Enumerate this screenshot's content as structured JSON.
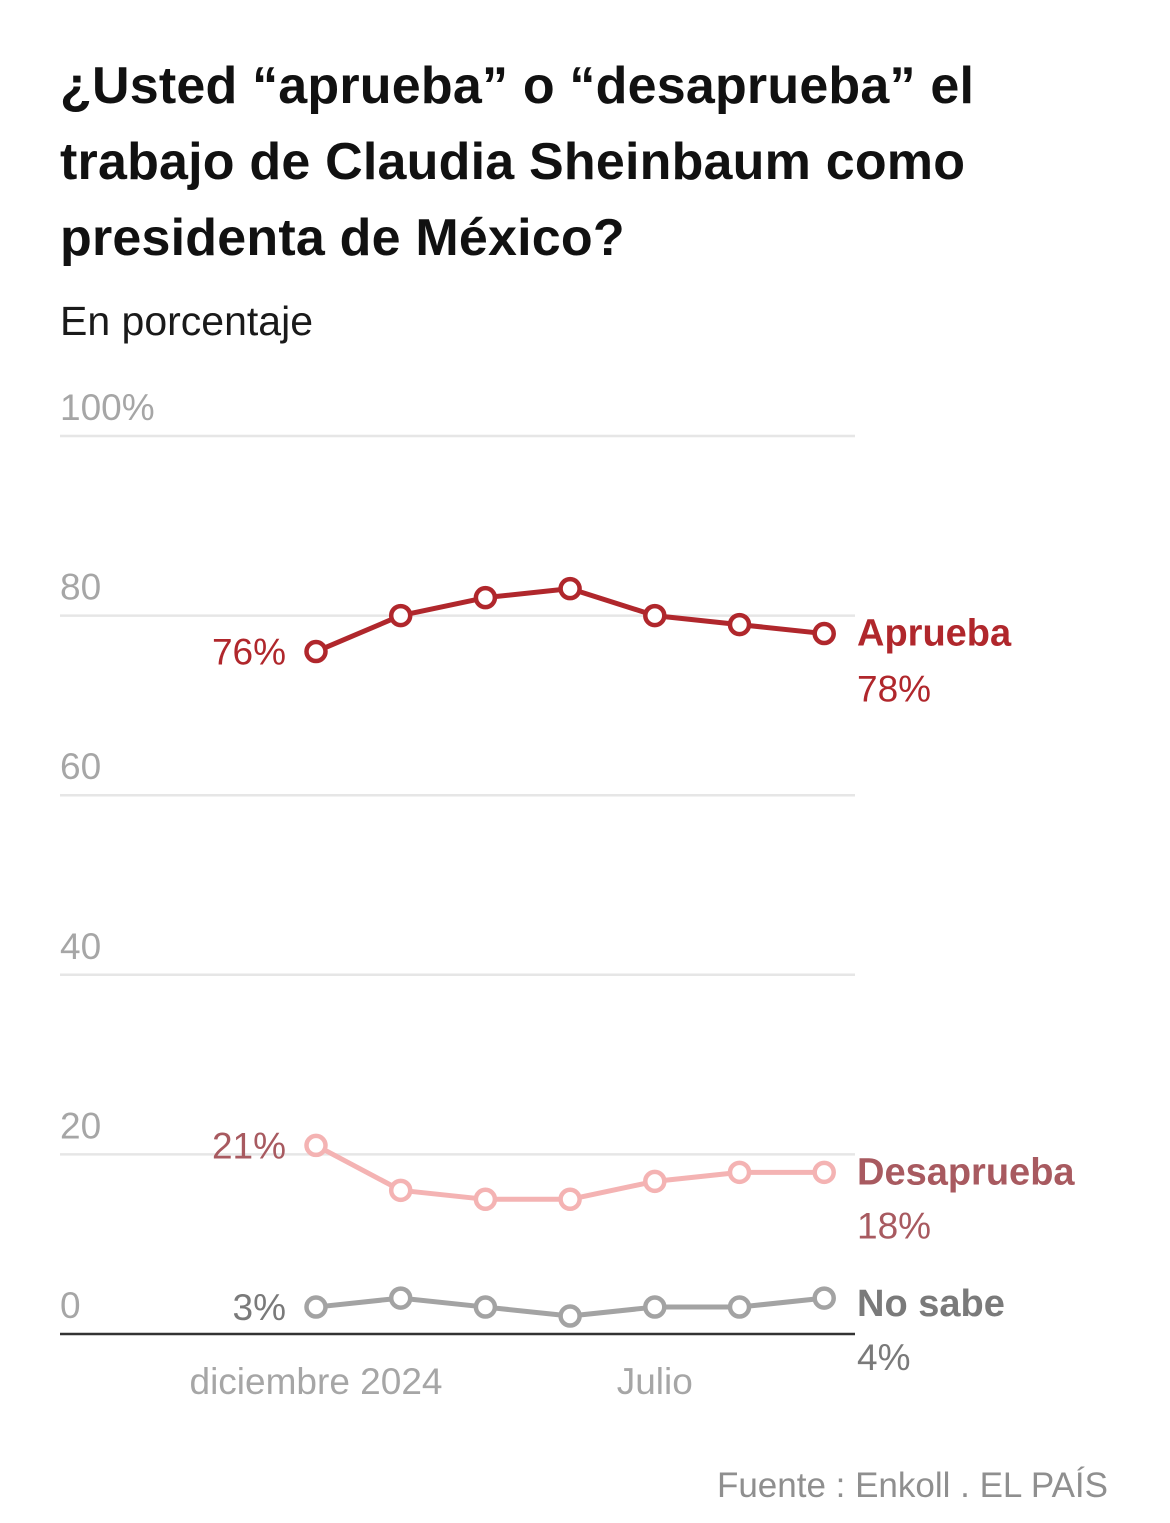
{
  "header": {
    "title": "¿Usted “aprueba” o “desaprueba” el trabajo de Claudia Sheinbaum como presidenta de México?",
    "subtitle": "En porcentaje"
  },
  "footer": {
    "source": "Fuente : Enkoll . EL PAÍS"
  },
  "colors": {
    "aprueba": "#b0272c",
    "desaprueba_line": "#f4b3b3",
    "desaprueba_label": "#a85a60",
    "no_sabe": "#a3a3a3",
    "no_sabe_label": "#7a7a7a",
    "grid": "#e6e6e6",
    "tick": "#a6a6a6",
    "axis": "#333333"
  },
  "chart_data": {
    "type": "line",
    "title": "¿Usted “aprueba” o “desaprueba” el trabajo de Claudia Sheinbaum como presidenta de México?",
    "subtitle": "En porcentaje",
    "xlabel": "",
    "ylabel": "",
    "ylim": [
      0,
      100
    ],
    "y_ticks": [
      0,
      20,
      40,
      60,
      80,
      100
    ],
    "y_tick_labels": [
      "0",
      "20",
      "40",
      "60",
      "80",
      "100%"
    ],
    "grid": true,
    "x_points": 7,
    "x_tick_labels": [
      {
        "index": 0,
        "label": "diciembre 2024"
      },
      {
        "index": 4,
        "label": "Julio"
      }
    ],
    "series": [
      {
        "key": "aprueba",
        "name": "Aprueba",
        "values": [
          76,
          80,
          82,
          83,
          80,
          79,
          78
        ],
        "start_label": "76%",
        "end_label": "78%"
      },
      {
        "key": "desaprueba",
        "name": "Desaprueba",
        "values": [
          21,
          16,
          15,
          15,
          17,
          18,
          18
        ],
        "start_label": "21%",
        "end_label": "18%"
      },
      {
        "key": "no_sabe",
        "name": "No sabe",
        "values": [
          3,
          4,
          3,
          2,
          3,
          3,
          4
        ],
        "start_label": "3%",
        "end_label": "4%"
      }
    ]
  }
}
